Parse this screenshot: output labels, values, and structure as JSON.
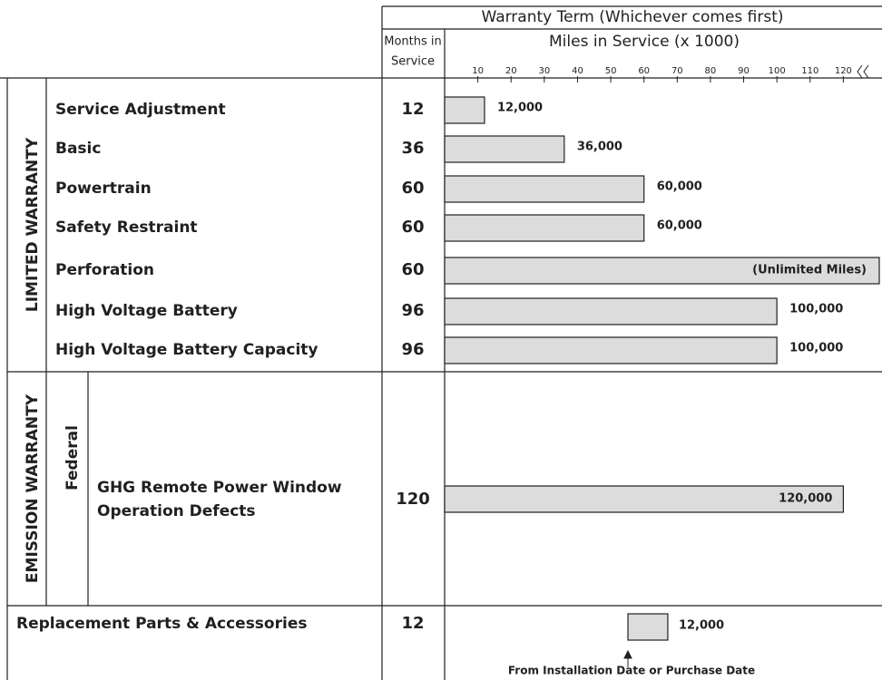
{
  "header": {
    "title": "Warranty Term (Whichever comes first)",
    "months_header": [
      "Months in",
      "Service"
    ],
    "miles_header": "Miles in Service (x 1000)"
  },
  "axis": {
    "xlim": [
      0,
      130
    ],
    "xticks": [
      10,
      20,
      30,
      40,
      50,
      60,
      70,
      80,
      90,
      100,
      110,
      120
    ]
  },
  "limited": {
    "title": "LIMITED WARRANTY",
    "rows": [
      {
        "label": "Service Adjustment",
        "months": "12",
        "miles": 12,
        "miles_label": "12,000"
      },
      {
        "label": "Basic",
        "months": "36",
        "miles": 36,
        "miles_label": "36,000"
      },
      {
        "label": "Powertrain",
        "months": "60",
        "miles": 60,
        "miles_label": "60,000"
      },
      {
        "label": "Safety Restraint",
        "months": "60",
        "miles": 60,
        "miles_label": "60,000"
      },
      {
        "label": "Perforation",
        "months": "60",
        "miles": null,
        "miles_label": "(Unlimited Miles)"
      },
      {
        "label": "High Voltage Battery",
        "months": "96",
        "miles": 100,
        "miles_label": "100,000"
      },
      {
        "label": "High Voltage Battery Capacity",
        "months": "96",
        "miles": 100,
        "miles_label": "100,000"
      }
    ]
  },
  "emission": {
    "title": "EMISSION WARRANTY",
    "sub": "Federal",
    "label_lines": [
      "GHG Remote Power Window",
      "Operation Defects"
    ],
    "months": "120",
    "miles": 120,
    "miles_label": "120,000"
  },
  "parts": {
    "label": "Replacement Parts & Accessories",
    "months": "12",
    "miles": 12,
    "miles_label": "12,000",
    "note": "From Installation Date or Purchase Date"
  }
}
